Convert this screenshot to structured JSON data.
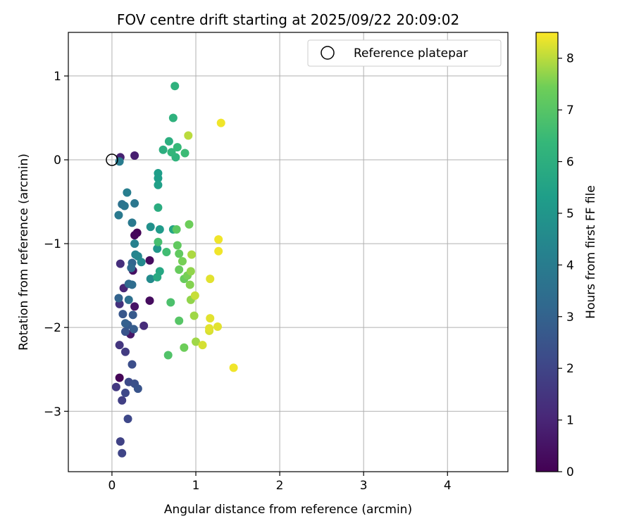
{
  "chart_data": {
    "type": "scatter",
    "title": "FOV centre drift starting at 2025/09/22 20:09:02",
    "xlabel": "Angular distance from reference (arcmin)",
    "ylabel": "Rotation from reference (arcmin)",
    "xlim": [
      -0.52,
      4.72
    ],
    "ylim": [
      -3.72,
      1.52
    ],
    "xticks": [
      0,
      1,
      2,
      3,
      4
    ],
    "xtick_labels": [
      "0",
      "1",
      "2",
      "3",
      "4"
    ],
    "yticks": [
      -3,
      -2,
      -1,
      0,
      1
    ],
    "ytick_labels": [
      "−3",
      "−2",
      "−1",
      "0",
      "1"
    ],
    "grid": true,
    "legend": {
      "position": "top-right",
      "entries": [
        {
          "label": "Reference platepar",
          "marker": "open-circle"
        }
      ]
    },
    "reference_point": {
      "x": 0,
      "y": 0
    },
    "colorbar": {
      "label": "Hours from first FF file",
      "min": 0,
      "max": 8.5,
      "ticks": [
        0,
        1,
        2,
        3,
        4,
        5,
        6,
        7,
        8
      ],
      "tick_labels": [
        "0",
        "1",
        "2",
        "3",
        "4",
        "5",
        "6",
        "7",
        "8"
      ],
      "colormap": "viridis"
    },
    "points": [
      {
        "x": 0.09,
        "y": -2.6,
        "c": 0.1
      },
      {
        "x": 0.3,
        "y": -0.87,
        "c": 0.1
      },
      {
        "x": 0.27,
        "y": -0.9,
        "c": 0.2
      },
      {
        "x": 0.45,
        "y": -1.2,
        "c": 0.3
      },
      {
        "x": 0.45,
        "y": -1.68,
        "c": 0.3
      },
      {
        "x": 0.25,
        "y": -1.32,
        "c": 0.4
      },
      {
        "x": 0.27,
        "y": -1.75,
        "c": 0.5
      },
      {
        "x": 0.22,
        "y": -2.08,
        "c": 0.6
      },
      {
        "x": 0.27,
        "y": 0.05,
        "c": 0.8
      },
      {
        "x": 0.1,
        "y": 0.03,
        "c": 0.9
      },
      {
        "x": 0.14,
        "y": -1.53,
        "c": 1.0
      },
      {
        "x": 0.38,
        "y": -1.98,
        "c": 1.2
      },
      {
        "x": 0.1,
        "y": -1.24,
        "c": 1.3
      },
      {
        "x": 0.09,
        "y": -1.72,
        "c": 1.4
      },
      {
        "x": 0.09,
        "y": -2.21,
        "c": 1.5
      },
      {
        "x": 0.05,
        "y": -2.71,
        "c": 1.6
      },
      {
        "x": 0.16,
        "y": -2.29,
        "c": 1.7
      },
      {
        "x": 0.12,
        "y": -2.87,
        "c": 1.8
      },
      {
        "x": 0.1,
        "y": -3.36,
        "c": 1.9
      },
      {
        "x": 0.12,
        "y": -3.5,
        "c": 2.0
      },
      {
        "x": 0.19,
        "y": -3.09,
        "c": 2.1
      },
      {
        "x": 0.16,
        "y": -2.78,
        "c": 2.1
      },
      {
        "x": 0.2,
        "y": -2.65,
        "c": 2.2
      },
      {
        "x": 0.24,
        "y": -2.44,
        "c": 2.3
      },
      {
        "x": 0.27,
        "y": -2.67,
        "c": 2.4
      },
      {
        "x": 0.31,
        "y": -2.73,
        "c": 2.5
      },
      {
        "x": 0.16,
        "y": -2.05,
        "c": 2.5
      },
      {
        "x": 0.13,
        "y": -1.84,
        "c": 2.6
      },
      {
        "x": 0.19,
        "y": -1.97,
        "c": 2.7
      },
      {
        "x": 0.25,
        "y": -1.85,
        "c": 2.7
      },
      {
        "x": 0.26,
        "y": -2.02,
        "c": 2.8
      },
      {
        "x": 0.16,
        "y": -1.95,
        "c": 2.9
      },
      {
        "x": 0.08,
        "y": -1.65,
        "c": 3.0
      },
      {
        "x": 0.24,
        "y": -1.23,
        "c": 3.1
      },
      {
        "x": 0.2,
        "y": -1.48,
        "c": 3.2
      },
      {
        "x": 0.23,
        "y": -1.29,
        "c": 3.3
      },
      {
        "x": 0.24,
        "y": -1.49,
        "c": 3.4
      },
      {
        "x": 0.2,
        "y": -1.67,
        "c": 3.5
      },
      {
        "x": 0.12,
        "y": -0.53,
        "c": 3.6
      },
      {
        "x": 0.15,
        "y": -0.55,
        "c": 3.7
      },
      {
        "x": 0.27,
        "y": -0.52,
        "c": 3.8
      },
      {
        "x": 0.24,
        "y": -0.75,
        "c": 3.9
      },
      {
        "x": 0.08,
        "y": -0.66,
        "c": 3.9
      },
      {
        "x": 0.09,
        "y": -0.02,
        "c": 4.0
      },
      {
        "x": 0.18,
        "y": -0.39,
        "c": 4.1
      },
      {
        "x": 0.27,
        "y": -1.0,
        "c": 4.2
      },
      {
        "x": 0.28,
        "y": -1.13,
        "c": 4.3
      },
      {
        "x": 0.31,
        "y": -1.15,
        "c": 4.4
      },
      {
        "x": 0.35,
        "y": -1.22,
        "c": 4.5
      },
      {
        "x": 0.46,
        "y": -1.42,
        "c": 4.6
      },
      {
        "x": 0.46,
        "y": -0.8,
        "c": 4.8
      },
      {
        "x": 0.54,
        "y": -1.06,
        "c": 5.0
      },
      {
        "x": 0.57,
        "y": -0.83,
        "c": 5.2
      },
      {
        "x": 0.55,
        "y": -0.16,
        "c": 5.3
      },
      {
        "x": 0.55,
        "y": -0.22,
        "c": 5.3
      },
      {
        "x": 0.55,
        "y": -0.3,
        "c": 5.4
      },
      {
        "x": 0.73,
        "y": -0.83,
        "c": 5.6
      },
      {
        "x": 0.57,
        "y": -1.33,
        "c": 5.7
      },
      {
        "x": 0.54,
        "y": -1.4,
        "c": 5.8
      },
      {
        "x": 0.55,
        "y": -0.57,
        "c": 5.9
      },
      {
        "x": 0.61,
        "y": 0.12,
        "c": 6.0
      },
      {
        "x": 0.68,
        "y": 0.22,
        "c": 6.0
      },
      {
        "x": 0.73,
        "y": 0.5,
        "c": 6.1
      },
      {
        "x": 0.75,
        "y": 0.88,
        "c": 6.1
      },
      {
        "x": 0.76,
        "y": 0.03,
        "c": 6.2
      },
      {
        "x": 0.71,
        "y": 0.09,
        "c": 6.3
      },
      {
        "x": 0.78,
        "y": 0.15,
        "c": 6.4
      },
      {
        "x": 0.87,
        "y": 0.08,
        "c": 6.5
      },
      {
        "x": 0.65,
        "y": -1.1,
        "c": 6.6
      },
      {
        "x": 0.55,
        "y": -0.98,
        "c": 6.7
      },
      {
        "x": 0.7,
        "y": -1.7,
        "c": 6.8
      },
      {
        "x": 0.67,
        "y": -2.33,
        "c": 6.9
      },
      {
        "x": 0.8,
        "y": -1.92,
        "c": 7.0
      },
      {
        "x": 0.77,
        "y": -0.83,
        "c": 7.1
      },
      {
        "x": 0.78,
        "y": -1.02,
        "c": 7.2
      },
      {
        "x": 0.8,
        "y": -1.12,
        "c": 7.2
      },
      {
        "x": 0.8,
        "y": -1.31,
        "c": 7.3
      },
      {
        "x": 0.86,
        "y": -1.42,
        "c": 7.3
      },
      {
        "x": 0.86,
        "y": -2.24,
        "c": 7.4
      },
      {
        "x": 0.92,
        "y": -0.77,
        "c": 7.4
      },
      {
        "x": 0.84,
        "y": -1.21,
        "c": 7.5
      },
      {
        "x": 0.9,
        "y": -1.38,
        "c": 7.5
      },
      {
        "x": 0.93,
        "y": -1.49,
        "c": 7.6
      },
      {
        "x": 0.94,
        "y": -1.33,
        "c": 7.7
      },
      {
        "x": 0.94,
        "y": -1.67,
        "c": 7.7
      },
      {
        "x": 1.0,
        "y": -2.17,
        "c": 7.8
      },
      {
        "x": 0.98,
        "y": -1.86,
        "c": 7.8
      },
      {
        "x": 0.95,
        "y": -1.13,
        "c": 7.9
      },
      {
        "x": 0.91,
        "y": 0.29,
        "c": 8.0
      },
      {
        "x": 0.99,
        "y": -1.62,
        "c": 8.1
      },
      {
        "x": 1.08,
        "y": -2.21,
        "c": 8.2
      },
      {
        "x": 1.16,
        "y": -2.04,
        "c": 8.2
      },
      {
        "x": 1.17,
        "y": -1.89,
        "c": 8.3
      },
      {
        "x": 1.16,
        "y": -2.01,
        "c": 8.3
      },
      {
        "x": 1.26,
        "y": -1.99,
        "c": 8.3
      },
      {
        "x": 1.17,
        "y": -1.42,
        "c": 8.3
      },
      {
        "x": 1.27,
        "y": -0.95,
        "c": 8.4
      },
      {
        "x": 1.27,
        "y": -1.09,
        "c": 8.4
      },
      {
        "x": 1.3,
        "y": 0.44,
        "c": 8.4
      },
      {
        "x": 1.45,
        "y": -2.48,
        "c": 8.4
      }
    ]
  }
}
